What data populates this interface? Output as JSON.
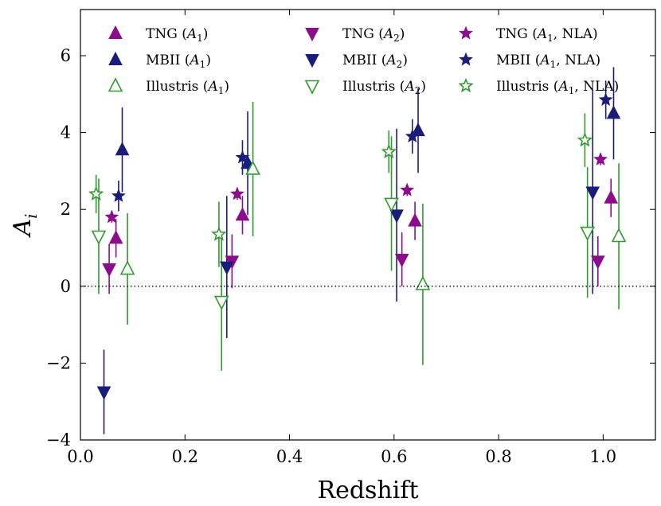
{
  "chart_data": {
    "type": "scatter",
    "title": "",
    "xlabel": "Redshift",
    "ylabel_base": "A",
    "ylabel_sub": "i",
    "xlim": [
      0.0,
      1.1
    ],
    "ylim": [
      -4,
      7.2
    ],
    "xticks": [
      0.0,
      0.2,
      0.4,
      0.6,
      0.8,
      1.0
    ],
    "xtick_labels": [
      "0.0",
      "0.2",
      "0.4",
      "0.6",
      "0.8",
      "1.0"
    ],
    "yticks": [
      -4,
      -2,
      0,
      2,
      4,
      6
    ],
    "ytick_labels": [
      "−4",
      "−2",
      "0",
      "2",
      "4",
      "6"
    ],
    "reference_line": {
      "y": 0,
      "style": "dotted"
    },
    "legend_location": "top",
    "colors": {
      "tng": "#8b0d8b",
      "mbii": "#1b1c7a",
      "illustris": "#2e9b2e"
    },
    "series": [
      {
        "name": "TNG",
        "param": "A",
        "param_sub": "1",
        "param_suffix": "",
        "color": "#8b0d8b",
        "marker": "triangle-up",
        "filled": true,
        "points": [
          {
            "x": 0.068,
            "y": 1.25,
            "err": 0.5
          },
          {
            "x": 0.31,
            "y": 1.85,
            "err": 0.5
          },
          {
            "x": 0.64,
            "y": 1.7,
            "err": 0.5
          },
          {
            "x": 1.015,
            "y": 2.3,
            "err": 0.5
          }
        ]
      },
      {
        "name": "MBII",
        "param": "A",
        "param_sub": "1",
        "param_suffix": "",
        "color": "#1b1c7a",
        "marker": "triangle-up",
        "filled": true,
        "points": [
          {
            "x": 0.08,
            "y": 3.55,
            "err": 1.1
          },
          {
            "x": 0.32,
            "y": 3.2,
            "err": 1.35
          },
          {
            "x": 0.646,
            "y": 4.05,
            "err": 1.1
          },
          {
            "x": 1.02,
            "y": 4.5,
            "err": 1.2
          }
        ]
      },
      {
        "name": "Illustris",
        "param": "A",
        "param_sub": "1",
        "param_suffix": "",
        "color": "#2e9b2e",
        "marker": "triangle-up",
        "filled": false,
        "points": [
          {
            "x": 0.09,
            "y": 0.45,
            "err": 1.45
          },
          {
            "x": 0.33,
            "y": 3.05,
            "err": 1.75
          },
          {
            "x": 0.655,
            "y": 0.05,
            "err": 2.1
          },
          {
            "x": 1.03,
            "y": 1.3,
            "err": 1.9
          }
        ]
      },
      {
        "name": "TNG",
        "param": "A",
        "param_sub": "2",
        "param_suffix": "",
        "color": "#8b0d8b",
        "marker": "triangle-down",
        "filled": true,
        "points": [
          {
            "x": 0.055,
            "y": 0.45,
            "err": 0.65
          },
          {
            "x": 0.29,
            "y": 0.65,
            "err": 0.7
          },
          {
            "x": 0.615,
            "y": 0.7,
            "err": 0.7
          },
          {
            "x": 0.99,
            "y": 0.65,
            "err": 0.65
          }
        ]
      },
      {
        "name": "MBII",
        "param": "A",
        "param_sub": "2",
        "param_suffix": "",
        "color": "#1b1c7a",
        "marker": "triangle-down",
        "filled": true,
        "points": [
          {
            "x": 0.045,
            "y": -2.75,
            "err": 1.1
          },
          {
            "x": 0.28,
            "y": 0.5,
            "err": 1.85
          },
          {
            "x": 0.605,
            "y": 1.85,
            "err": 2.25
          },
          {
            "x": 0.98,
            "y": 2.45,
            "err": 2.65
          }
        ]
      },
      {
        "name": "Illustris",
        "param": "A",
        "param_sub": "2",
        "param_suffix": "",
        "color": "#2e9b2e",
        "marker": "triangle-down",
        "filled": false,
        "points": [
          {
            "x": 0.035,
            "y": 1.3,
            "err": 1.5
          },
          {
            "x": 0.27,
            "y": -0.4,
            "err": 1.8
          },
          {
            "x": 0.595,
            "y": 2.15,
            "err": 1.75
          },
          {
            "x": 0.97,
            "y": 1.4,
            "err": 1.7
          }
        ]
      },
      {
        "name": "TNG",
        "param": "A",
        "param_sub": "1",
        "param_suffix": ", NLA",
        "color": "#8b0d8b",
        "marker": "star",
        "filled": true,
        "points": [
          {
            "x": 0.06,
            "y": 1.8,
            "err": 0.15
          },
          {
            "x": 0.3,
            "y": 2.4,
            "err": 0.15
          },
          {
            "x": 0.625,
            "y": 2.5,
            "err": 0.15
          },
          {
            "x": 0.995,
            "y": 3.3,
            "err": 0.15
          }
        ]
      },
      {
        "name": "MBII",
        "param": "A",
        "param_sub": "1",
        "param_suffix": ", NLA",
        "color": "#1b1c7a",
        "marker": "star",
        "filled": true,
        "points": [
          {
            "x": 0.073,
            "y": 2.35,
            "err": 0.4
          },
          {
            "x": 0.31,
            "y": 3.35,
            "err": 0.45
          },
          {
            "x": 0.635,
            "y": 3.9,
            "err": 0.45
          },
          {
            "x": 1.005,
            "y": 4.85,
            "err": 0.5
          }
        ]
      },
      {
        "name": "Illustris",
        "param": "A",
        "param_sub": "1",
        "param_suffix": ", NLA",
        "color": "#2e9b2e",
        "marker": "star",
        "filled": false,
        "points": [
          {
            "x": 0.03,
            "y": 2.4,
            "err": 0.5
          },
          {
            "x": 0.265,
            "y": 1.35,
            "err": 0.85
          },
          {
            "x": 0.59,
            "y": 3.5,
            "err": 0.55
          },
          {
            "x": 0.965,
            "y": 3.8,
            "err": 0.7
          }
        ]
      }
    ]
  }
}
